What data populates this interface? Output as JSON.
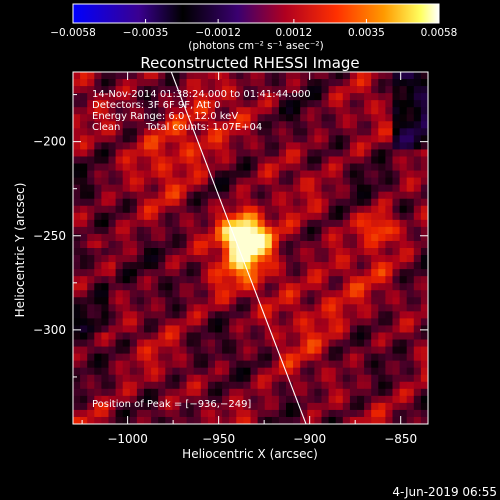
{
  "chart_data": {
    "type": "heatmap",
    "title": "Reconstructed RHESSI Image",
    "xlabel": "Heliocentric X (arcsec)",
    "ylabel": "Heliocentric Y (arcsec)",
    "xlim": [
      -1030,
      -835
    ],
    "ylim": [
      -350,
      -163
    ],
    "x_ticks": [
      -1000,
      -950,
      -900,
      -850
    ],
    "x_tick_labels": [
      "−1000",
      "−950",
      "−900",
      "−850"
    ],
    "y_ticks": [
      -200,
      -250,
      -300
    ],
    "y_tick_labels": [
      "−200",
      "−250",
      "−300"
    ],
    "colorbar": {
      "min": -0.0058,
      "max": 0.0058,
      "ticks": [
        -0.0058,
        -0.0035,
        -0.0012,
        0.0012,
        0.0035,
        0.0058
      ],
      "tick_labels": [
        "−0.0058",
        "−0.0035",
        "−0.0012",
        "0.0012",
        "0.0035",
        "0.0058"
      ],
      "units_label": "(photons cm⁻² s⁻¹ asec⁻²)"
    },
    "peak": {
      "x": -936,
      "y": -249
    },
    "limb_line": [
      {
        "x": -976,
        "y": -163
      },
      {
        "x": -902,
        "y": -350
      }
    ],
    "annotations": {
      "time_range": "14-Nov-2014 01:38:24.000 to 01:41:44.000",
      "detectors": "Detectors: 3F 6F 9F, Att 0",
      "energy_range": "Energy Range: 6.0 - 12.0 keV",
      "method": "Clean",
      "total_counts": "Total counts: 1.07E+04",
      "peak_position": "Position of Peak = [−936,−249]"
    },
    "grid": false
  },
  "footer": {
    "timestamp": "4-Jun-2019 06:55"
  }
}
